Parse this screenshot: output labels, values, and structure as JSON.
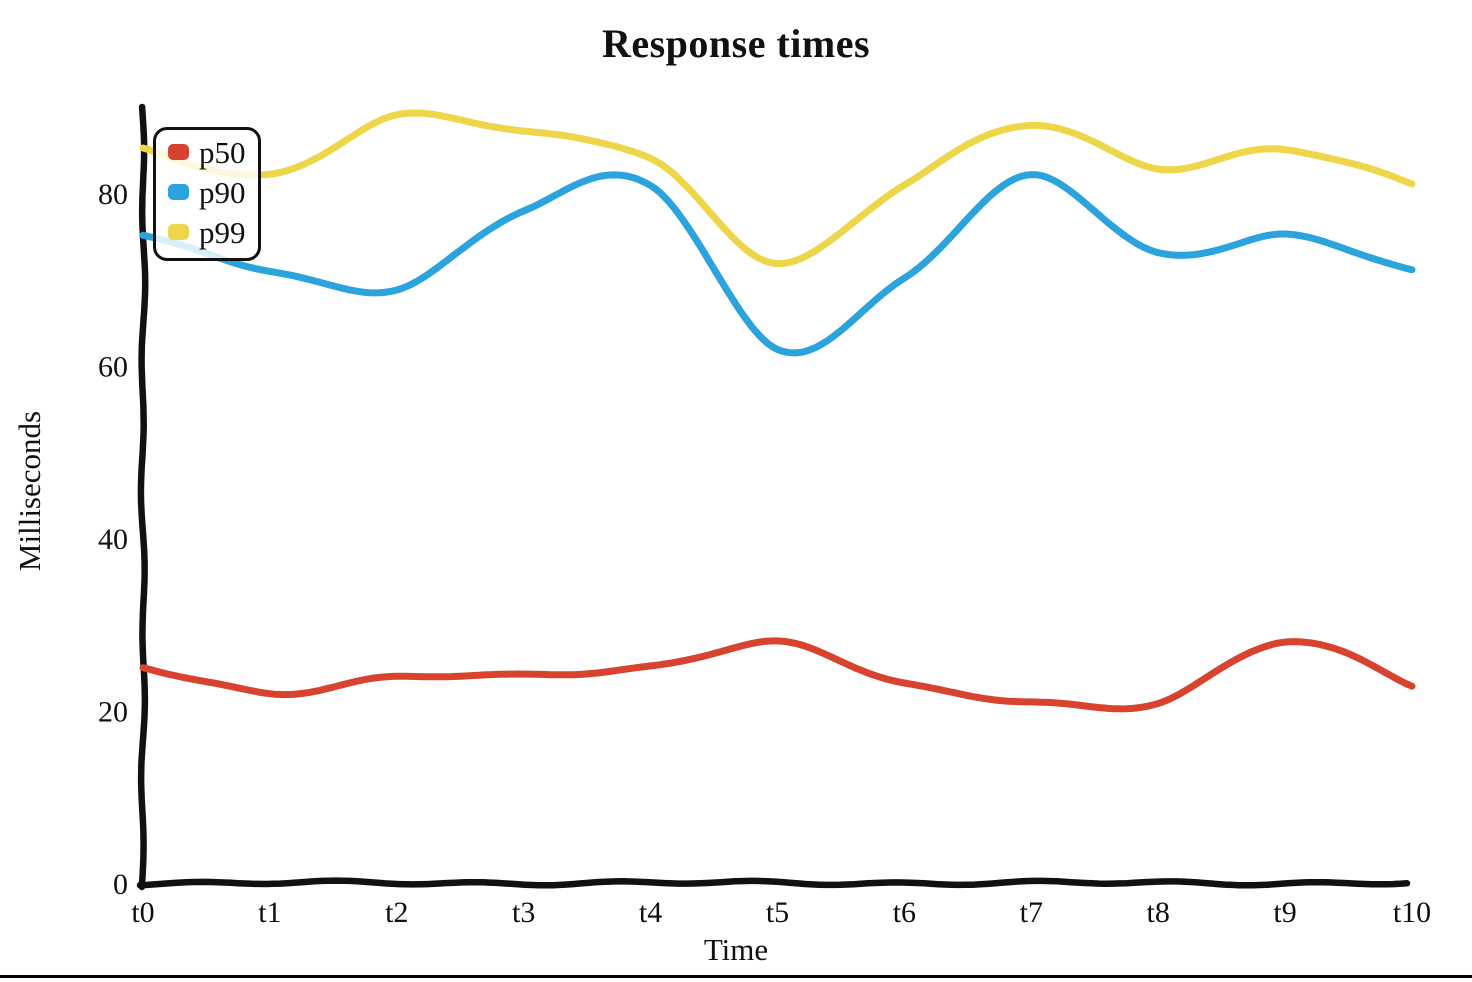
{
  "chart_data": {
    "type": "line",
    "style": "xkcd-hand-drawn",
    "title": "Response times",
    "xlabel": "Time",
    "ylabel": "Milliseconds",
    "categories": [
      "t0",
      "t1",
      "t2",
      "t3",
      "t4",
      "t5",
      "t6",
      "t7",
      "t8",
      "t9",
      "t10"
    ],
    "y_ticks": [
      0,
      20,
      40,
      60,
      80
    ],
    "ylim": [
      0,
      90
    ],
    "grid": false,
    "legend_position": "top-left",
    "axis_color": "#111111",
    "series": [
      {
        "name": "p50",
        "color": "#d8432f",
        "values": [
          25,
          22,
          24,
          24,
          25,
          28,
          23,
          21,
          21,
          28,
          23
        ]
      },
      {
        "name": "p90",
        "color": "#2ba3dc",
        "values": [
          75,
          71,
          69,
          78,
          81,
          62,
          70,
          82,
          73,
          75,
          71
        ]
      },
      {
        "name": "p99",
        "color": "#eed64a",
        "values": [
          85,
          82,
          89,
          87,
          84,
          72,
          81,
          88,
          83,
          85,
          81
        ]
      }
    ]
  }
}
